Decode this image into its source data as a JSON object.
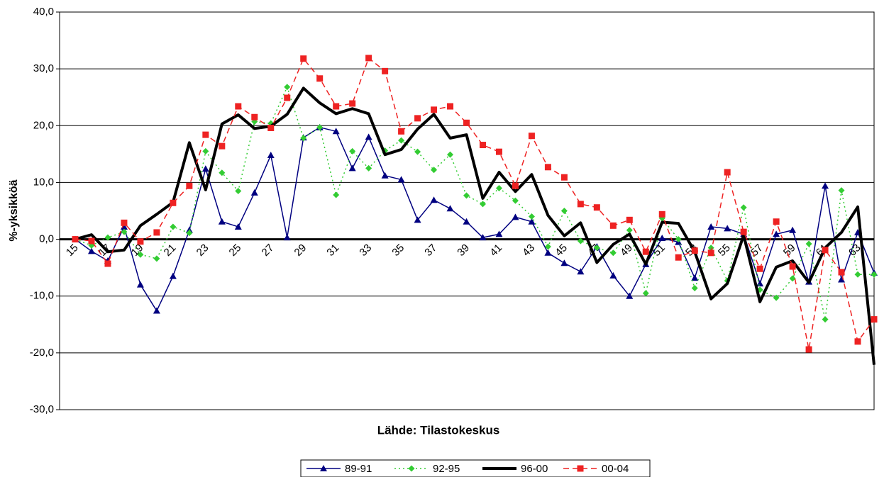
{
  "chart_data": {
    "type": "line",
    "xlabel": "Lähde: Tilastokeskus",
    "ylabel": "%-yksikköä",
    "categories": [
      "15",
      null,
      "17",
      null,
      "19",
      null,
      "21",
      null,
      "23",
      null,
      "25",
      null,
      "27",
      null,
      "29",
      null,
      "31",
      null,
      "33",
      null,
      "35",
      null,
      "37",
      null,
      "39",
      null,
      "41",
      null,
      "43",
      null,
      "45",
      null,
      "47",
      null,
      "49",
      null,
      "51",
      null,
      "53",
      null,
      "55",
      null,
      "57",
      null,
      "59",
      null,
      "61",
      null,
      "63",
      null
    ],
    "series": [
      {
        "name": "89-91",
        "color": "#000080",
        "marker": "triangle",
        "dash": "solid",
        "values": [
          0,
          -2.1,
          -3.8,
          2.2,
          -8.0,
          -12.6,
          -6.5,
          1.6,
          12.4,
          3.1,
          2.2,
          8.2,
          14.8,
          0.3,
          17.9,
          19.7,
          19.0,
          12.5,
          18.0,
          11.2,
          10.5,
          3.4,
          6.9,
          5.4,
          3.1,
          0.3,
          0.9,
          3.9,
          3.1,
          -2.4,
          -4.2,
          -5.7,
          -1.3,
          -6.4,
          -10.0,
          -4.4,
          0.2,
          -0.5,
          -6.8,
          2.2,
          1.9,
          0.9,
          -7.8,
          0.9,
          1.6,
          -7.5,
          9.4,
          -7.1,
          1.2,
          -5.9
        ]
      },
      {
        "name": "92-95",
        "color": "#33cc33",
        "marker": "diamond",
        "dash": "dotted",
        "values": [
          0,
          -1.1,
          0.3,
          1.3,
          -2.7,
          -3.4,
          2.2,
          1.1,
          15.5,
          11.7,
          8.5,
          20.7,
          20.4,
          26.8,
          17.8,
          19.7,
          7.8,
          15.5,
          12.5,
          15.6,
          17.4,
          15.4,
          12.2,
          14.9,
          7.7,
          6.2,
          9.0,
          6.8,
          4.0,
          -1.3,
          5.0,
          -0.3,
          -1.5,
          -2.4,
          1.6,
          -9.5,
          3.7,
          0.0,
          -8.6,
          -1.5,
          -7.3,
          5.6,
          -8.9,
          -10.3,
          -6.9,
          -0.8,
          -14.1,
          8.6,
          -6.2,
          -6.2
        ]
      },
      {
        "name": "96-00",
        "color": "#000000",
        "marker": "none",
        "dash": "thick",
        "values": [
          0,
          0.8,
          -2.2,
          -1.9,
          2.4,
          4.4,
          6.5,
          17.0,
          8.7,
          20.3,
          21.9,
          19.5,
          19.9,
          22.0,
          26.6,
          24.0,
          22.1,
          23.0,
          22.1,
          14.9,
          15.8,
          19.4,
          22.0,
          17.8,
          18.4,
          7.2,
          11.8,
          8.4,
          11.4,
          4.2,
          0.6,
          2.9,
          -4.1,
          -0.9,
          0.9,
          -4.4,
          3.0,
          2.8,
          -2.2,
          -10.5,
          -7.8,
          0.7,
          -11.0,
          -4.9,
          -3.8,
          -7.6,
          -1.5,
          1.2,
          5.7,
          -22.1
        ]
      },
      {
        "name": "00-04",
        "color": "#ee2222",
        "marker": "square",
        "dash": "dashed",
        "values": [
          0,
          -0.3,
          -4.3,
          2.9,
          -0.4,
          1.2,
          6.4,
          9.4,
          18.4,
          16.4,
          23.4,
          21.5,
          19.6,
          24.9,
          31.8,
          28.3,
          23.4,
          23.9,
          31.9,
          29.6,
          19.0,
          21.3,
          22.8,
          23.4,
          20.5,
          16.6,
          15.4,
          9.4,
          18.2,
          12.7,
          10.9,
          6.2,
          5.6,
          2.4,
          3.4,
          -2.2,
          4.4,
          -3.2,
          -2.0,
          -2.4,
          11.8,
          1.3,
          -5.2,
          3.1,
          -4.8,
          -19.4,
          -1.9,
          -5.8,
          -18.0,
          -14.1
        ]
      }
    ],
    "ylim": [
      -30,
      40
    ],
    "yticks": [
      {
        "value": -30,
        "label": "-30,0"
      },
      {
        "value": -20,
        "label": "-20,0"
      },
      {
        "value": -10,
        "label": "-10,0"
      },
      {
        "value": 0,
        "label": "0,0"
      },
      {
        "value": 10,
        "label": "10,0"
      },
      {
        "value": 20,
        "label": "20,0"
      },
      {
        "value": 30,
        "label": "30,0"
      },
      {
        "value": 40,
        "label": "40,0"
      }
    ],
    "grid": true,
    "legend": "bottom"
  }
}
